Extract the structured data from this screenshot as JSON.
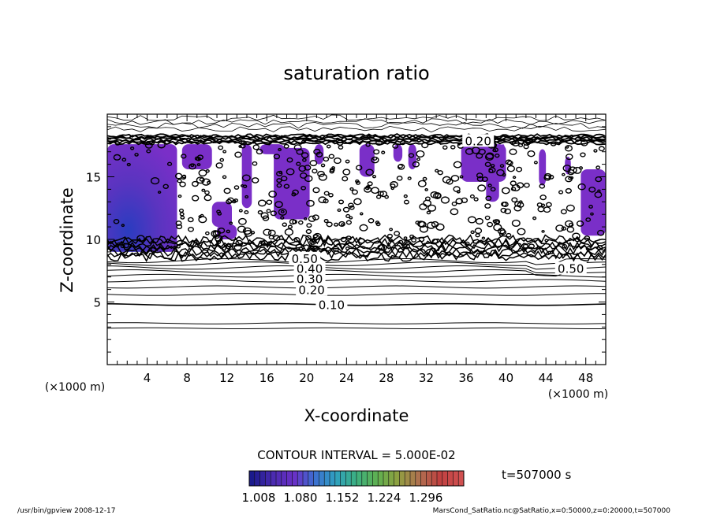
{
  "chart_data": {
    "type": "heatmap",
    "title": "saturation ratio",
    "xlabel": "X-coordinate",
    "ylabel": "Z-coordinate",
    "x_unit": "(×1000 m)",
    "y_unit": "(×1000 m)",
    "xlim": [
      0,
      50
    ],
    "ylim": [
      0,
      20
    ],
    "xticks": [
      4,
      8,
      12,
      16,
      20,
      24,
      28,
      32,
      36,
      40,
      44,
      48
    ],
    "yticks": [
      5,
      10,
      15
    ],
    "contour_interval_label": "CONTOUR INTERVAL = 5.000E-02",
    "contour_labels": [
      "0.10",
      "0.20",
      "0.30",
      "0.40",
      "0.50",
      "0.20",
      "0.50"
    ],
    "colorbar": {
      "ticks": [
        "1.008",
        "1.080",
        "1.152",
        "1.224",
        "1.296"
      ],
      "colors": [
        "#1a1a8c",
        "#4a2bb0",
        "#6a2fc6",
        "#3c6fd0",
        "#2fa0c0",
        "#3cb080",
        "#60b050",
        "#90a040",
        "#b07050",
        "#c04040",
        "#d05050"
      ]
    },
    "time_label": "t=507000 s",
    "footer_left": "/usr/bin/gpview   2008-12-17",
    "footer_right": "MarsCond_SatRatio.nc@SatRatio,x=0:50000,z=0:20000,t=507000"
  }
}
